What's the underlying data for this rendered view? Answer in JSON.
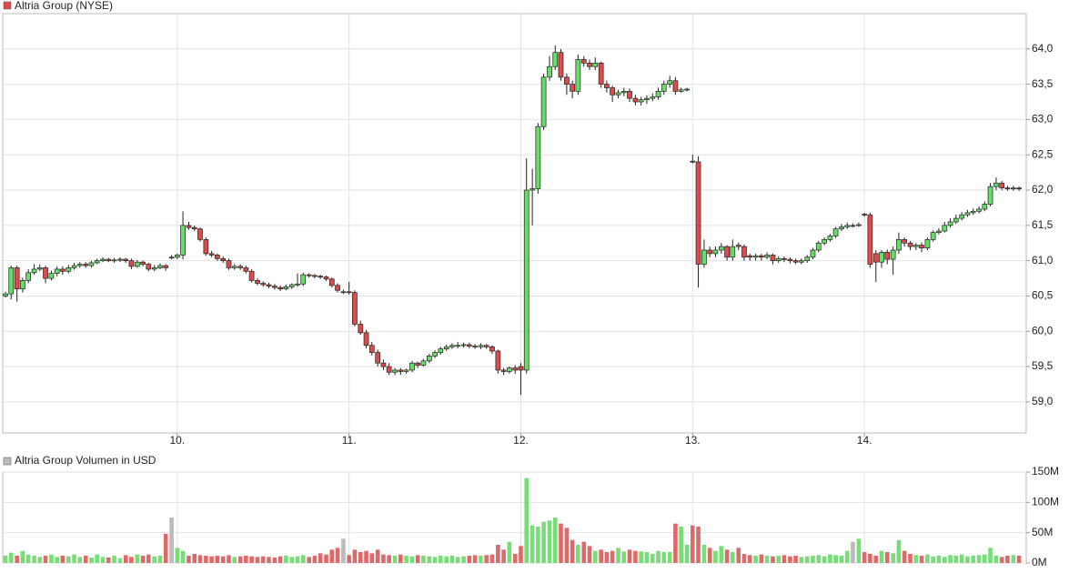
{
  "chart_data": [
    {
      "type": "candlestick",
      "title": "Altria Group (NYSE)",
      "up_color": "#66dd66",
      "down_color": "#dd4b4b",
      "flat_color": "#999999",
      "grid": true,
      "xlim": [
        8.984,
        14.942
      ],
      "xticks": [
        {
          "value": 10,
          "label": "10."
        },
        {
          "value": 11,
          "label": "11."
        },
        {
          "value": 12,
          "label": "12."
        },
        {
          "value": 13,
          "label": "13."
        },
        {
          "value": 14,
          "label": "14."
        }
      ],
      "ylim": [
        58.56,
        64.5
      ],
      "yticks": [
        {
          "value": 59,
          "label": "59,0"
        },
        {
          "value": 59.5,
          "label": "59,5"
        },
        {
          "value": 60,
          "label": "60,0"
        },
        {
          "value": 60.5,
          "label": "60,5"
        },
        {
          "value": 61,
          "label": "61,0"
        },
        {
          "value": 61.5,
          "label": "61,5"
        },
        {
          "value": 62,
          "label": "62,0"
        },
        {
          "value": 62.5,
          "label": "62,5"
        },
        {
          "value": 63,
          "label": "63,0"
        },
        {
          "value": 63.5,
          "label": "63,5"
        },
        {
          "value": 64,
          "label": "64,0"
        }
      ],
      "x": [
        9,
        9.033,
        9.067,
        9.1,
        9.133,
        9.167,
        9.2,
        9.233,
        9.267,
        9.3,
        9.333,
        9.367,
        9.4,
        9.433,
        9.467,
        9.5,
        9.533,
        9.567,
        9.6,
        9.633,
        9.667,
        9.7,
        9.733,
        9.767,
        9.8,
        9.833,
        9.867,
        9.9,
        9.933,
        9.967,
        10,
        10.033,
        10.067,
        10.1,
        10.133,
        10.167,
        10.2,
        10.233,
        10.267,
        10.3,
        10.333,
        10.367,
        10.4,
        10.433,
        10.467,
        10.5,
        10.533,
        10.567,
        10.6,
        10.633,
        10.667,
        10.7,
        10.733,
        10.767,
        10.8,
        10.833,
        10.867,
        10.9,
        10.933,
        10.967,
        11,
        11.033,
        11.067,
        11.1,
        11.133,
        11.167,
        11.2,
        11.233,
        11.267,
        11.3,
        11.333,
        11.367,
        11.4,
        11.433,
        11.467,
        11.5,
        11.533,
        11.567,
        11.6,
        11.633,
        11.667,
        11.7,
        11.733,
        11.767,
        11.8,
        11.833,
        11.867,
        11.9,
        11.933,
        11.967,
        12,
        12.033,
        12.067,
        12.1,
        12.133,
        12.167,
        12.2,
        12.233,
        12.267,
        12.3,
        12.333,
        12.367,
        12.4,
        12.433,
        12.467,
        12.5,
        12.533,
        12.567,
        12.6,
        12.633,
        12.667,
        12.7,
        12.733,
        12.767,
        12.8,
        12.833,
        12.867,
        12.9,
        12.933,
        12.967,
        13,
        13.033,
        13.067,
        13.1,
        13.133,
        13.167,
        13.2,
        13.233,
        13.267,
        13.3,
        13.333,
        13.367,
        13.4,
        13.433,
        13.467,
        13.5,
        13.533,
        13.567,
        13.6,
        13.633,
        13.667,
        13.7,
        13.733,
        13.767,
        13.8,
        13.833,
        13.867,
        13.9,
        13.933,
        13.967,
        14,
        14.033,
        14.067,
        14.1,
        14.133,
        14.167,
        14.2,
        14.233,
        14.267,
        14.3,
        14.333,
        14.367,
        14.4,
        14.433,
        14.467,
        14.5,
        14.533,
        14.567,
        14.6,
        14.633,
        14.667,
        14.7,
        14.733,
        14.767,
        14.8,
        14.833,
        14.867,
        14.9
      ],
      "open": [
        60.5,
        60.53,
        60.9,
        60.6,
        60.72,
        60.83,
        60.88,
        60.9,
        60.75,
        60.82,
        60.88,
        60.85,
        60.9,
        60.93,
        60.95,
        60.93,
        60.97,
        61.0,
        61.02,
        61.0,
        61.01,
        61.02,
        61.0,
        60.92,
        60.98,
        60.95,
        60.88,
        60.9,
        60.93,
        61.05,
        61.05,
        61.08,
        61.5,
        61.47,
        61.45,
        61.3,
        61.1,
        61.08,
        61.03,
        61.0,
        60.9,
        60.92,
        60.9,
        60.85,
        60.72,
        60.68,
        60.66,
        60.64,
        60.62,
        60.6,
        60.63,
        60.66,
        60.67,
        60.8,
        60.79,
        60.78,
        60.77,
        60.74,
        60.65,
        60.56,
        60.56,
        60.55,
        60.1,
        59.98,
        59.8,
        59.7,
        59.55,
        59.5,
        59.42,
        59.45,
        59.43,
        59.45,
        59.55,
        59.52,
        59.58,
        59.65,
        59.7,
        59.75,
        59.78,
        59.79,
        59.8,
        59.81,
        59.79,
        59.78,
        59.8,
        59.78,
        59.72,
        59.45,
        59.43,
        59.48,
        59.5,
        59.45,
        62.0,
        62.02,
        62.9,
        63.6,
        63.75,
        63.95,
        63.6,
        63.5,
        63.4,
        63.85,
        63.8,
        63.75,
        63.8,
        63.5,
        63.45,
        63.35,
        63.38,
        63.4,
        63.3,
        63.25,
        63.28,
        63.3,
        63.32,
        63.4,
        63.5,
        63.55,
        63.4,
        63.42,
        62.41,
        62.4,
        60.95,
        61.15,
        61.1,
        61.15,
        61.2,
        61.05,
        61.22,
        61.2,
        61.07,
        61.05,
        61.07,
        61.05,
        61.08,
        61.0,
        61.03,
        61.02,
        61.0,
        60.98,
        61.0,
        61.05,
        61.15,
        61.25,
        61.3,
        61.35,
        61.45,
        61.48,
        61.5,
        61.5,
        61.66,
        61.65,
        61.1,
        60.98,
        61.12,
        61.02,
        61.15,
        61.3,
        61.25,
        61.2,
        61.22,
        61.18,
        61.3,
        61.4,
        61.42,
        61.5,
        61.55,
        61.6,
        61.65,
        61.68,
        61.7,
        61.73,
        61.8,
        62.05,
        62.1,
        62.03,
        62.02,
        62.03
      ],
      "high": [
        60.56,
        60.93,
        60.93,
        60.76,
        60.88,
        60.95,
        60.95,
        60.93,
        60.86,
        60.92,
        60.92,
        60.94,
        60.97,
        60.98,
        60.98,
        61.0,
        61.03,
        61.05,
        61.04,
        61.04,
        61.05,
        61.04,
        61.03,
        61.01,
        61.0,
        60.97,
        60.94,
        60.96,
        60.95,
        61.08,
        61.1,
        61.7,
        61.55,
        61.5,
        61.47,
        61.33,
        61.14,
        61.1,
        61.06,
        61.03,
        60.95,
        60.95,
        60.93,
        60.88,
        60.75,
        60.71,
        60.69,
        60.67,
        60.65,
        60.66,
        60.68,
        60.82,
        60.83,
        60.82,
        60.81,
        60.8,
        60.79,
        60.76,
        60.68,
        60.59,
        60.7,
        60.58,
        60.15,
        60.02,
        59.85,
        59.74,
        59.6,
        59.55,
        59.48,
        59.48,
        59.47,
        59.58,
        59.57,
        59.61,
        59.68,
        59.73,
        59.78,
        59.81,
        59.83,
        59.85,
        59.84,
        59.84,
        59.82,
        59.83,
        59.82,
        59.8,
        59.74,
        59.48,
        59.5,
        59.52,
        59.55,
        62.45,
        62.3,
        62.95,
        63.65,
        63.9,
        64.05,
        64.0,
        63.65,
        63.55,
        63.92,
        63.9,
        63.85,
        63.88,
        63.82,
        63.55,
        63.48,
        63.42,
        63.45,
        63.44,
        63.35,
        63.32,
        63.34,
        63.37,
        63.45,
        63.55,
        63.62,
        63.6,
        63.45,
        63.45,
        62.5,
        62.48,
        61.3,
        61.2,
        61.2,
        61.25,
        61.22,
        61.3,
        61.26,
        61.23,
        61.1,
        61.1,
        61.1,
        61.12,
        61.1,
        61.06,
        61.06,
        61.05,
        61.03,
        61.03,
        61.08,
        61.18,
        61.28,
        61.33,
        61.38,
        61.48,
        61.52,
        61.54,
        61.53,
        61.54,
        61.68,
        61.68,
        61.15,
        61.15,
        61.16,
        61.2,
        61.4,
        61.33,
        61.28,
        61.25,
        61.26,
        61.33,
        61.43,
        61.46,
        61.55,
        61.6,
        61.65,
        61.69,
        61.72,
        61.74,
        61.77,
        61.84,
        62.1,
        62.18,
        62.13,
        62.06,
        62.06,
        62.05
      ],
      "low": [
        60.48,
        60.45,
        60.42,
        60.55,
        60.68,
        60.8,
        60.85,
        60.68,
        60.72,
        60.78,
        60.8,
        60.82,
        60.87,
        60.9,
        60.9,
        60.9,
        60.95,
        60.98,
        60.98,
        60.97,
        60.98,
        60.97,
        60.88,
        60.9,
        60.92,
        60.85,
        60.85,
        60.88,
        60.86,
        61.02,
        61.02,
        61.02,
        61.44,
        61.42,
        61.27,
        61.07,
        61.05,
        61.0,
        60.97,
        60.87,
        60.87,
        60.87,
        60.82,
        60.69,
        60.65,
        60.63,
        60.61,
        60.59,
        60.57,
        60.58,
        60.6,
        60.63,
        60.64,
        60.76,
        60.75,
        60.74,
        60.71,
        60.62,
        60.55,
        60.53,
        60.52,
        60.07,
        59.95,
        59.76,
        59.66,
        59.5,
        59.45,
        59.38,
        59.38,
        59.38,
        59.4,
        59.42,
        59.48,
        59.5,
        59.55,
        59.62,
        59.67,
        59.72,
        59.75,
        59.76,
        59.77,
        59.76,
        59.75,
        59.75,
        59.75,
        59.68,
        59.4,
        59.38,
        59.4,
        59.4,
        59.1,
        59.4,
        61.5,
        61.95,
        62.85,
        63.55,
        63.7,
        63.55,
        63.35,
        63.3,
        63.35,
        63.75,
        63.7,
        63.7,
        63.45,
        63.38,
        63.25,
        63.3,
        63.33,
        63.25,
        63.2,
        63.2,
        63.22,
        63.26,
        63.28,
        63.35,
        63.45,
        63.35,
        63.38,
        63.4,
        62.38,
        60.62,
        60.9,
        61.05,
        61.05,
        61.1,
        61.0,
        61.0,
        61.15,
        61.0,
        61.0,
        61.0,
        61.0,
        61.02,
        60.95,
        60.97,
        60.98,
        60.96,
        60.95,
        60.95,
        60.97,
        61.02,
        61.12,
        61.22,
        61.27,
        61.32,
        61.42,
        61.45,
        61.47,
        61.48,
        61.62,
        60.9,
        60.7,
        60.9,
        60.95,
        60.8,
        61.1,
        61.2,
        61.15,
        61.15,
        61.12,
        61.15,
        61.27,
        61.37,
        61.4,
        61.47,
        61.52,
        61.57,
        61.62,
        61.65,
        61.67,
        61.7,
        61.77,
        62.0,
        62.0,
        61.99,
        61.99,
        61.99
      ],
      "close": [
        60.53,
        60.9,
        60.6,
        60.72,
        60.83,
        60.88,
        60.9,
        60.75,
        60.82,
        60.88,
        60.85,
        60.9,
        60.93,
        60.95,
        60.93,
        60.97,
        61.0,
        61.02,
        61.0,
        61.01,
        61.02,
        61.0,
        60.92,
        60.98,
        60.95,
        60.88,
        60.9,
        60.93,
        60.9,
        61.05,
        61.08,
        61.5,
        61.47,
        61.45,
        61.3,
        61.1,
        61.08,
        61.03,
        61.0,
        60.9,
        60.92,
        60.9,
        60.85,
        60.72,
        60.68,
        60.66,
        60.64,
        60.62,
        60.6,
        60.63,
        60.66,
        60.67,
        60.8,
        60.79,
        60.78,
        60.77,
        60.74,
        60.65,
        60.58,
        60.56,
        60.55,
        60.1,
        59.98,
        59.8,
        59.7,
        59.55,
        59.5,
        59.42,
        59.45,
        59.43,
        59.45,
        59.55,
        59.52,
        59.58,
        59.65,
        59.7,
        59.75,
        59.78,
        59.8,
        59.8,
        59.81,
        59.79,
        59.78,
        59.8,
        59.78,
        59.72,
        59.45,
        59.43,
        59.48,
        59.45,
        59.45,
        62.0,
        62.02,
        62.9,
        63.6,
        63.75,
        63.95,
        63.6,
        63.5,
        63.4,
        63.85,
        63.8,
        63.75,
        63.8,
        63.5,
        63.45,
        63.35,
        63.38,
        63.4,
        63.3,
        63.25,
        63.28,
        63.3,
        63.32,
        63.4,
        63.5,
        63.55,
        63.4,
        63.42,
        63.43,
        62.4,
        60.95,
        61.15,
        61.1,
        61.15,
        61.2,
        61.05,
        61.2,
        61.2,
        61.05,
        61.05,
        61.07,
        61.05,
        61.08,
        61.0,
        61.03,
        61.02,
        61.0,
        60.98,
        61.0,
        61.05,
        61.15,
        61.25,
        61.3,
        61.35,
        61.45,
        61.48,
        61.5,
        61.5,
        61.51,
        61.65,
        60.95,
        60.98,
        61.12,
        61.02,
        61.15,
        61.3,
        61.25,
        61.2,
        61.22,
        61.18,
        61.3,
        61.4,
        61.42,
        61.5,
        61.55,
        61.6,
        61.65,
        61.68,
        61.7,
        61.73,
        61.8,
        62.05,
        62.1,
        62.03,
        62.02,
        62.03,
        62.02
      ]
    },
    {
      "type": "bar",
      "title": "Altria Group Volumen in USD",
      "up_color": "#77dd77",
      "down_color": "#dd6a6a",
      "flat_color": "#bbbbbb",
      "grid": true,
      "ylim": [
        0,
        150
      ],
      "yticks": [
        {
          "value": 0,
          "label": "0M"
        },
        {
          "value": 50,
          "label": "50M"
        },
        {
          "value": 100,
          "label": "100M"
        },
        {
          "value": 150,
          "label": "150M"
        }
      ],
      "values": [
        12,
        17,
        12,
        20,
        14,
        12,
        10,
        12,
        14,
        10,
        12,
        11,
        14,
        10,
        12,
        9,
        14,
        10,
        9,
        12,
        8,
        13,
        10,
        14,
        12,
        14,
        11,
        12,
        48,
        75,
        25,
        20,
        12,
        15,
        13,
        12,
        11,
        12,
        11,
        13,
        10,
        11,
        12,
        11,
        10,
        11,
        10,
        9,
        11,
        12,
        10,
        11,
        13,
        10,
        12,
        16,
        14,
        22,
        25,
        40,
        13,
        22,
        18,
        20,
        16,
        22,
        14,
        13,
        12,
        14,
        12,
        11,
        13,
        12,
        11,
        10,
        12,
        11,
        12,
        10,
        11,
        12,
        13,
        12,
        13,
        14,
        30,
        22,
        35,
        15,
        28,
        140,
        62,
        60,
        68,
        70,
        75,
        65,
        58,
        38,
        30,
        35,
        28,
        20,
        22,
        18,
        20,
        25,
        19,
        22,
        20,
        19,
        18,
        15,
        20,
        18,
        18,
        65,
        60,
        30,
        62,
        60,
        30,
        25,
        20,
        28,
        22,
        18,
        25,
        15,
        13,
        12,
        14,
        12,
        11,
        12,
        13,
        11,
        12,
        10,
        11,
        12,
        13,
        11,
        14,
        13,
        12,
        20,
        35,
        40,
        18,
        15,
        12,
        20,
        18,
        16,
        38,
        20,
        15,
        13,
        12,
        14,
        11,
        12,
        10,
        13,
        12,
        14,
        11,
        12,
        13,
        14,
        25,
        12,
        10,
        12,
        13,
        12
      ]
    }
  ]
}
